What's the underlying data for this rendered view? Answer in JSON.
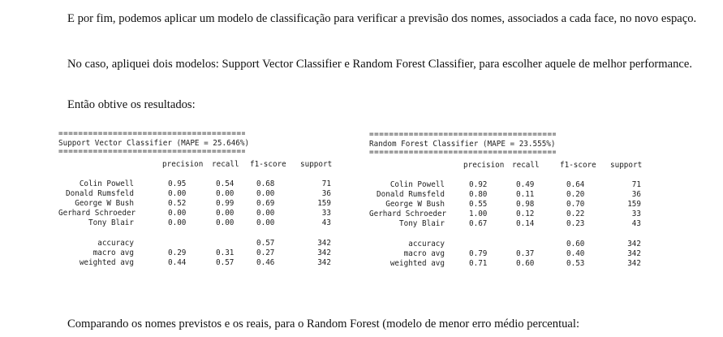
{
  "paragraphs": {
    "p1": "E por fim, podemos aplicar um modelo de classificação para verificar a previsão dos nomes, associados a cada face, no novo espaço.",
    "p2": "No caso, apliquei dois modelos: Support Vector Classifier e Random Forest Classifier, para escolher aquele de melhor performance.",
    "p3": "Então obtive os resultados:",
    "p4": "Comparando os nomes previstos e os reais, para o Random Forest (modelo de menor erro médio percentual:"
  },
  "reports": {
    "svc": {
      "rule": "==========================================",
      "title": "Support Vector Classifier (MAPE = 25.646%)",
      "headers": [
        "precision",
        "recall",
        "f1-score",
        "support"
      ],
      "rows": [
        {
          "label": "Colin Powell",
          "precision": "0.95",
          "recall": "0.54",
          "f1": "0.68",
          "support": "71"
        },
        {
          "label": "Donald Rumsfeld",
          "precision": "0.00",
          "recall": "0.00",
          "f1": "0.00",
          "support": "36"
        },
        {
          "label": "George W Bush",
          "precision": "0.52",
          "recall": "0.99",
          "f1": "0.69",
          "support": "159"
        },
        {
          "label": "Gerhard Schroeder",
          "precision": "0.00",
          "recall": "0.00",
          "f1": "0.00",
          "support": "33"
        },
        {
          "label": "Tony Blair",
          "precision": "0.00",
          "recall": "0.00",
          "f1": "0.00",
          "support": "43"
        }
      ],
      "summary": [
        {
          "label": "accuracy",
          "precision": "",
          "recall": "",
          "f1": "0.57",
          "support": "342"
        },
        {
          "label": "macro avg",
          "precision": "0.29",
          "recall": "0.31",
          "f1": "0.27",
          "support": "342"
        },
        {
          "label": "weighted avg",
          "precision": "0.44",
          "recall": "0.57",
          "f1": "0.46",
          "support": "342"
        }
      ]
    },
    "rfc": {
      "rule": "==========================================",
      "title": "Random Forest Classifier (MAPE = 23.555%)",
      "headers": [
        "precision",
        "recall",
        "f1-score",
        "support"
      ],
      "rows": [
        {
          "label": "Colin Powell",
          "precision": "0.92",
          "recall": "0.49",
          "f1": "0.64",
          "support": "71"
        },
        {
          "label": "Donald Rumsfeld",
          "precision": "0.80",
          "recall": "0.11",
          "f1": "0.20",
          "support": "36"
        },
        {
          "label": "George W Bush",
          "precision": "0.55",
          "recall": "0.98",
          "f1": "0.70",
          "support": "159"
        },
        {
          "label": "Gerhard Schroeder",
          "precision": "1.00",
          "recall": "0.12",
          "f1": "0.22",
          "support": "33"
        },
        {
          "label": "Tony Blair",
          "precision": "0.67",
          "recall": "0.14",
          "f1": "0.23",
          "support": "43"
        }
      ],
      "summary": [
        {
          "label": "accuracy",
          "precision": "",
          "recall": "",
          "f1": "0.60",
          "support": "342"
        },
        {
          "label": "macro avg",
          "precision": "0.79",
          "recall": "0.37",
          "f1": "0.40",
          "support": "342"
        },
        {
          "label": "weighted avg",
          "precision": "0.71",
          "recall": "0.60",
          "f1": "0.53",
          "support": "342"
        }
      ]
    }
  }
}
